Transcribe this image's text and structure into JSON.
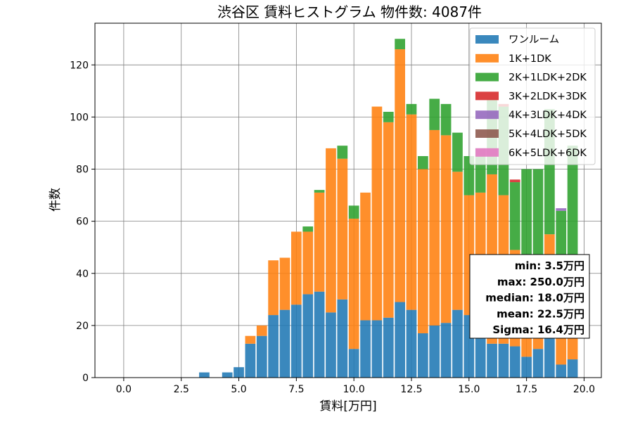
{
  "chart_data": {
    "type": "bar",
    "stacked": true,
    "title": "渋谷区 賃料ヒストグラム 物件数: 4087件",
    "xlabel": "賃料[万円]",
    "ylabel": "件数",
    "xlim": [
      -1.25,
      20.75
    ],
    "ylim": [
      0,
      136
    ],
    "xticks": [
      0.0,
      2.5,
      5.0,
      7.5,
      10.0,
      12.5,
      15.0,
      17.5,
      20.0
    ],
    "xtick_labels": [
      "0.0",
      "2.5",
      "5.0",
      "7.5",
      "10.0",
      "12.5",
      "15.0",
      "17.5",
      "20.0"
    ],
    "yticks": [
      0,
      20,
      40,
      60,
      80,
      100,
      120
    ],
    "ytick_labels": [
      "0",
      "20",
      "40",
      "60",
      "80",
      "100",
      "120"
    ],
    "grid": true,
    "legend_position": "top-right",
    "bin_width": 0.5,
    "x": [
      3.5,
      4.0,
      4.5,
      5.0,
      5.5,
      6.0,
      6.5,
      7.0,
      7.5,
      8.0,
      8.5,
      9.0,
      9.5,
      10.0,
      10.5,
      11.0,
      11.5,
      12.0,
      12.5,
      13.0,
      13.5,
      14.0,
      14.5,
      15.0,
      15.5,
      16.0,
      16.5,
      17.0,
      17.5,
      18.0,
      18.5,
      19.0,
      19.5
    ],
    "series": [
      {
        "name": "ワンルーム",
        "color": "#1f77b4",
        "values": [
          2,
          0,
          2,
          4,
          13,
          16,
          24,
          26,
          28,
          32,
          33,
          25,
          30,
          11,
          22,
          22,
          23,
          29,
          26,
          17,
          20,
          21,
          26,
          24,
          26,
          13,
          13,
          12,
          8,
          11,
          15,
          5,
          7
        ]
      },
      {
        "name": "1K+1DK",
        "color": "#ff7f0e",
        "values": [
          0,
          0,
          0,
          0,
          3,
          4,
          21,
          20,
          28,
          24,
          38,
          63,
          54,
          50,
          49,
          82,
          75,
          97,
          75,
          63,
          75,
          72,
          53,
          46,
          45,
          65,
          57,
          37,
          30,
          30,
          40,
          33,
          35
        ]
      },
      {
        "name": "2K+1LDK+2DK",
        "color": "#2ca02c",
        "values": [
          0,
          0,
          0,
          0,
          0,
          0,
          0,
          0,
          0,
          2,
          1,
          0,
          5,
          5,
          0,
          0,
          4,
          4,
          4,
          5,
          12,
          12,
          15,
          15,
          17,
          29,
          34,
          26,
          42,
          39,
          48,
          26,
          47
        ]
      },
      {
        "name": "3K+2LDK+3DK",
        "color": "#d62728",
        "values": [
          0,
          0,
          0,
          0,
          0,
          0,
          0,
          0,
          0,
          0,
          0,
          0,
          0,
          0,
          0,
          0,
          0,
          0,
          0,
          0,
          0,
          0,
          0,
          0,
          0,
          0,
          1,
          1,
          0,
          0,
          0,
          0,
          0
        ]
      },
      {
        "name": "4K+3LDK+4DK",
        "color": "#9467bd",
        "values": [
          0,
          0,
          0,
          0,
          0,
          0,
          0,
          0,
          0,
          0,
          0,
          0,
          0,
          0,
          0,
          0,
          0,
          0,
          0,
          0,
          0,
          0,
          0,
          0,
          0,
          0,
          0,
          0,
          0,
          0,
          0,
          1,
          0
        ]
      },
      {
        "name": "5K+4LDK+5DK",
        "color": "#8c564b",
        "values": [
          0,
          0,
          0,
          0,
          0,
          0,
          0,
          0,
          0,
          0,
          0,
          0,
          0,
          0,
          0,
          0,
          0,
          0,
          0,
          0,
          0,
          0,
          0,
          0,
          0,
          0,
          0,
          0,
          0,
          0,
          0,
          0,
          0
        ]
      },
      {
        "name": "6K+5LDK+6DK",
        "color": "#e377c2",
        "values": [
          0,
          0,
          0,
          0,
          0,
          0,
          0,
          0,
          0,
          0,
          0,
          0,
          0,
          0,
          0,
          0,
          0,
          0,
          0,
          0,
          0,
          0,
          0,
          0,
          0,
          0,
          0,
          0,
          0,
          0,
          0,
          0,
          0
        ]
      }
    ],
    "stats_box": [
      "min: 3.5万円",
      "max: 250.0万円",
      "median: 18.0万円",
      "mean: 22.5万円",
      "Sigma: 16.4万円"
    ]
  }
}
